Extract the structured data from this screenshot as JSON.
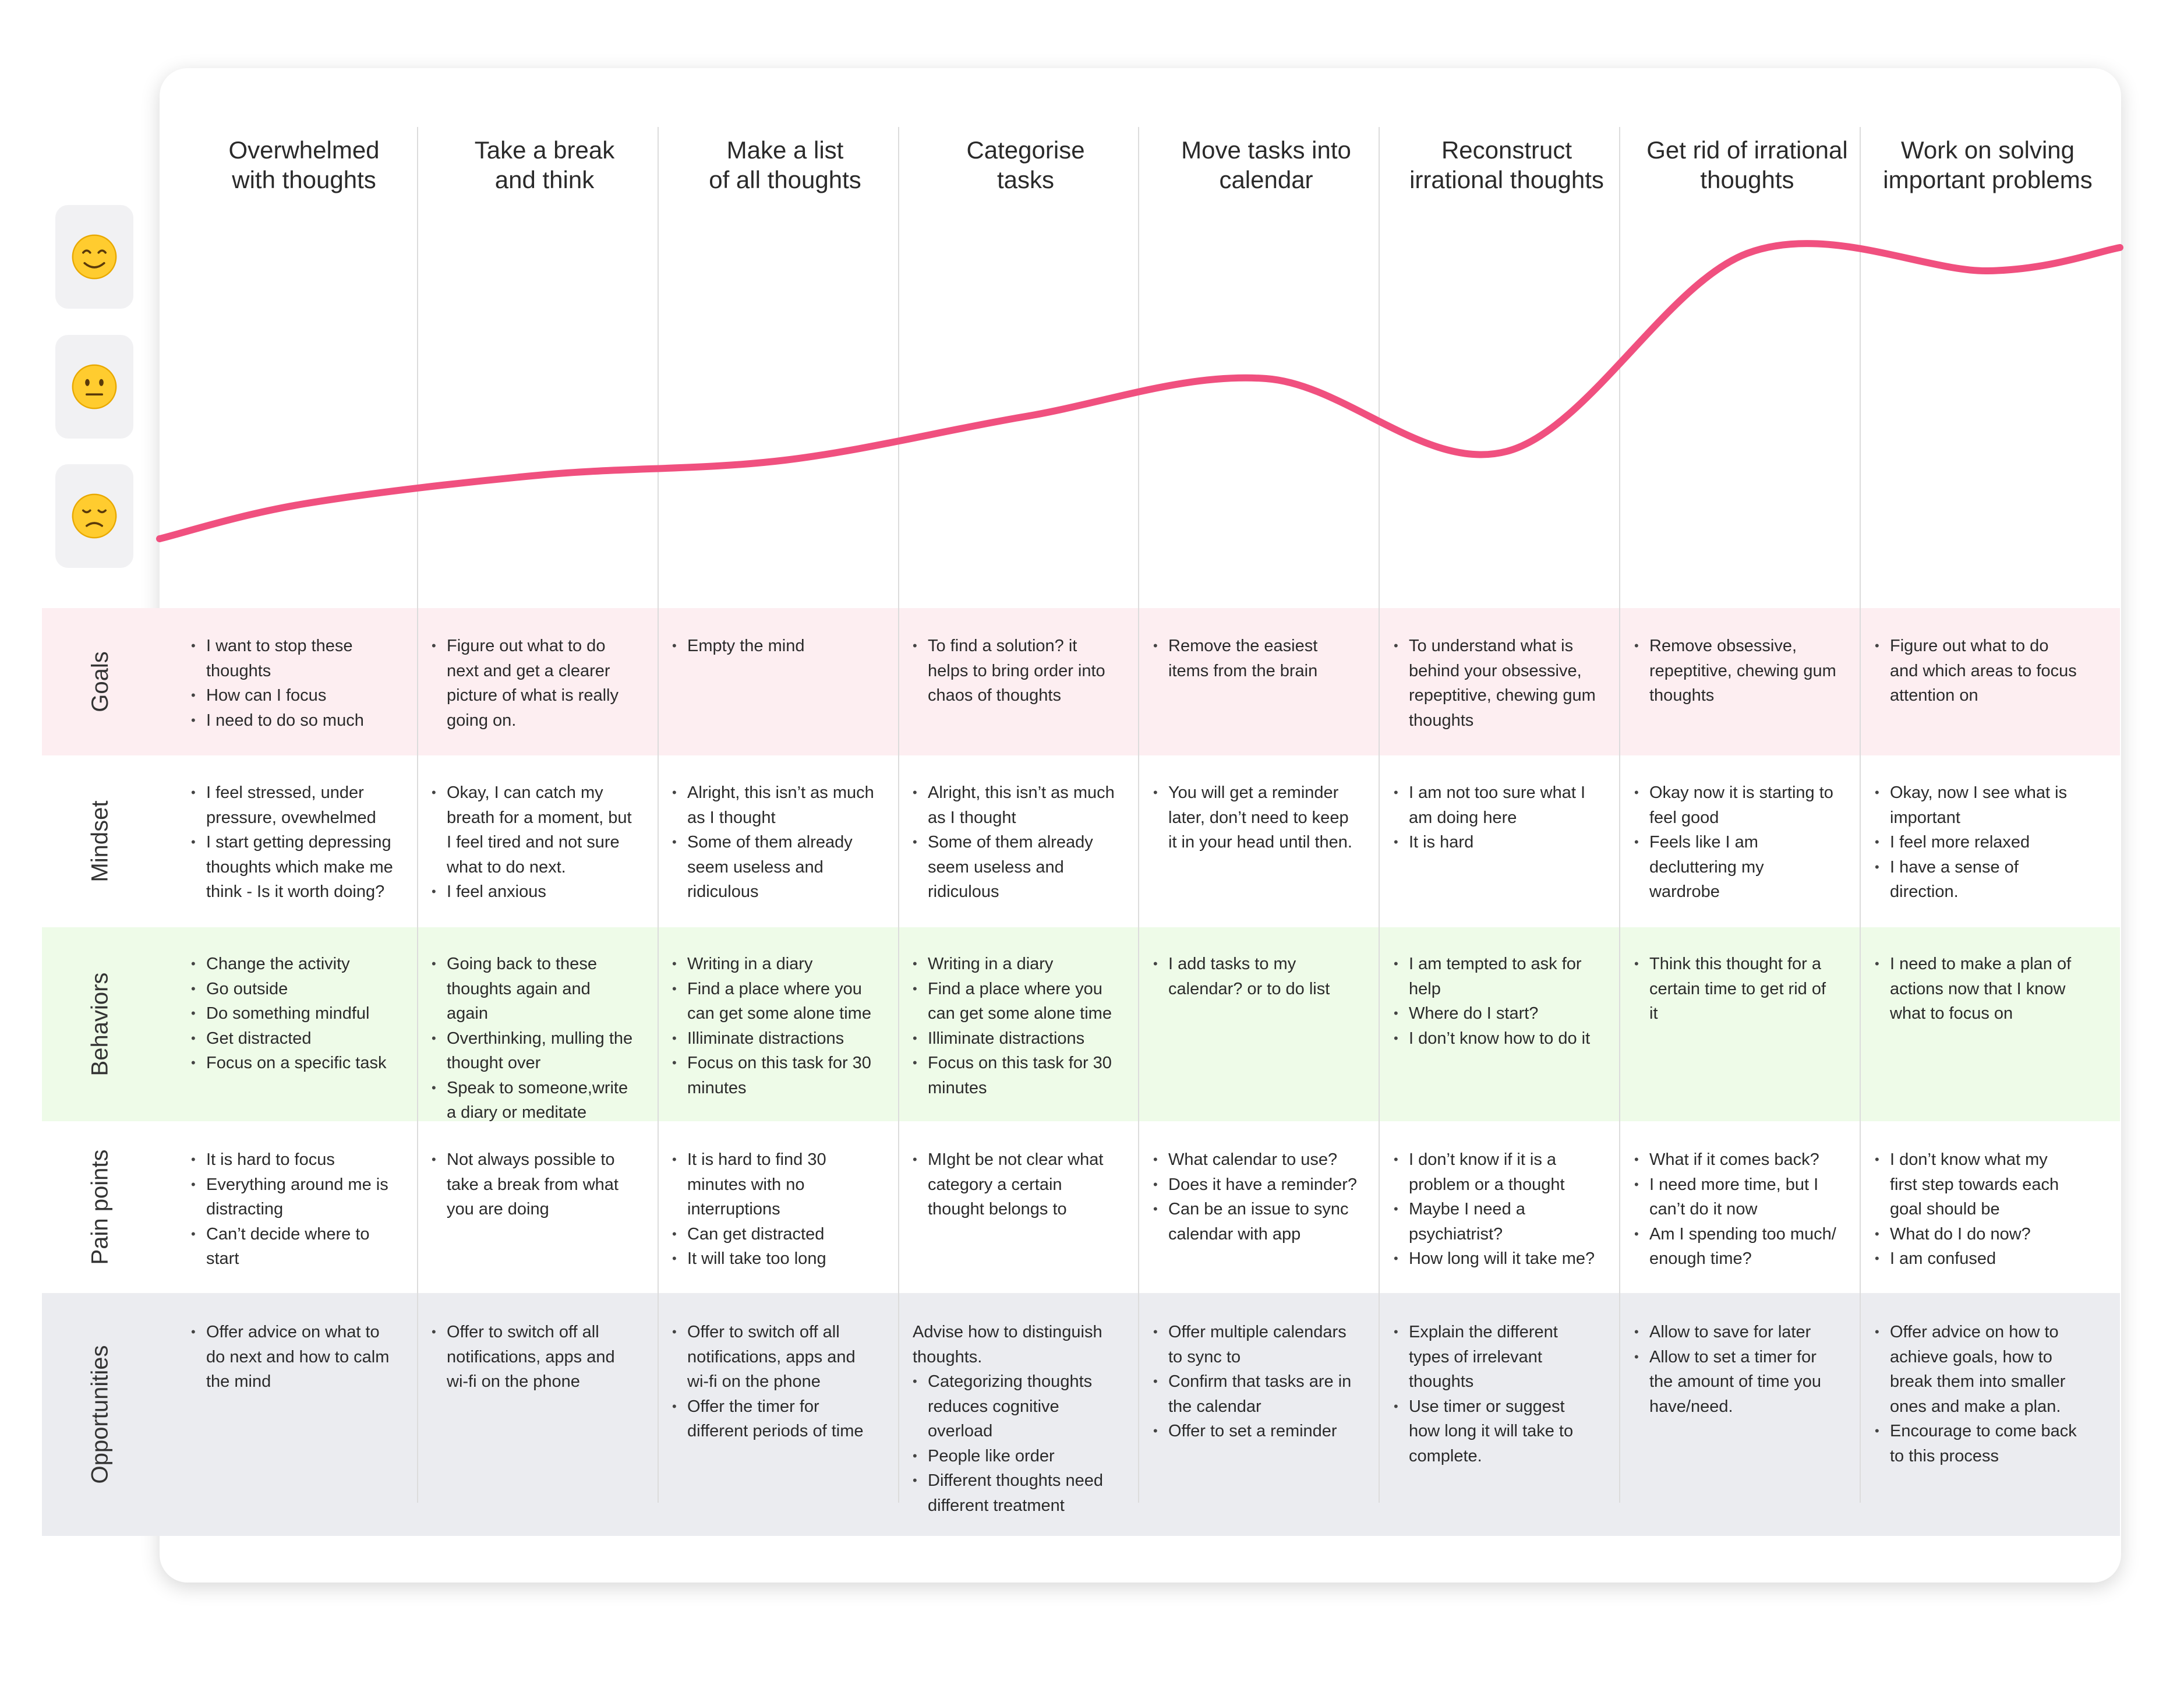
{
  "stages": [
    "Overwhelmed\nwith thoughts",
    "Take a break\nand think",
    "Make a list\nof all thoughts",
    "Categorise\ntasks",
    "Move tasks into\ncalendar",
    "Reconstruct\nirrational thoughts",
    "Get rid of irrational\nthoughts",
    "Work on solving\nimportant problems"
  ],
  "emotion_scale": [
    {
      "level": "happy",
      "icon": "smiling-face-icon"
    },
    {
      "level": "neutral",
      "icon": "neutral-face-icon"
    },
    {
      "level": "sad",
      "icon": "slightly-frowning-face-icon"
    }
  ],
  "emotion_curve": {
    "color": "#f0507f",
    "points": [
      {
        "stage": "start",
        "level": 0.0
      },
      {
        "stage": 1,
        "level": 0.12
      },
      {
        "stage": 2,
        "level": 0.22
      },
      {
        "stage": 3,
        "level": 0.27
      },
      {
        "stage": 4,
        "level": 0.42
      },
      {
        "stage": 5,
        "level": 0.55
      },
      {
        "stage": 6,
        "level": 0.3
      },
      {
        "stage": 7,
        "level": 0.98
      },
      {
        "stage": 8,
        "level": 0.92
      },
      {
        "stage": "end",
        "level": 1.0
      }
    ]
  },
  "rows": [
    {
      "label": "Goals",
      "bg": "#fdeef1",
      "cells": [
        {
          "items": [
            "I want to stop these thoughts",
            "How can I focus",
            "I need to do so much"
          ]
        },
        {
          "items": [
            "Figure out what to do next and get a clearer picture of what is really going on."
          ]
        },
        {
          "items": [
            "Empty the mind"
          ]
        },
        {
          "items": [
            "To find a solution? it helps to bring order into chaos of thoughts"
          ]
        },
        {
          "items": [
            "Remove the easiest items from the brain"
          ]
        },
        {
          "items": [
            "To understand what is behind your obsessive, repeptitive, chewing gum thoughts"
          ]
        },
        {
          "items": [
            "Remove obsessive, repeptitive, chewing gum thoughts"
          ]
        },
        {
          "items": [
            "Figure out what to do and which areas to focus attention on"
          ]
        }
      ]
    },
    {
      "label": "Mindset",
      "bg": "#ffffff",
      "cells": [
        {
          "items": [
            "I feel stressed, under pressure, ovewhelmed",
            "I start getting depressing thoughts which make me think - Is it worth doing?"
          ]
        },
        {
          "items": [
            "Okay, I can catch my breath for a moment, but I feel tired and not sure what to do next.",
            "I feel anxious"
          ]
        },
        {
          "items": [
            "Alright, this isn’t as much as I thought",
            "Some of them already seem useless and ridiculous"
          ]
        },
        {
          "items": [
            "Alright, this isn’t as much as I thought",
            "Some of them already seem useless and ridiculous"
          ]
        },
        {
          "items": [
            "You will get a reminder later, don’t need to keep it in your head until then."
          ]
        },
        {
          "items": [
            "I am not too sure what I am doing here",
            "It is hard"
          ]
        },
        {
          "items": [
            "Okay now it is starting to feel good",
            "Feels like I am decluttering my wardrobe"
          ]
        },
        {
          "items": [
            "Okay, now I see what is important",
            "I feel more relaxed",
            "I have a sense of direction."
          ]
        }
      ]
    },
    {
      "label": "Behaviors",
      "bg": "#eefbe8",
      "cells": [
        {
          "items": [
            "Change the activity",
            "Go outside",
            "Do something mindful",
            "Get distracted",
            "Focus on a specific task"
          ]
        },
        {
          "items": [
            "Going back to these thoughts again and again",
            "Overthinking, mulling the thought over",
            "Speak to someone,write a diary or meditate"
          ]
        },
        {
          "items": [
            "Writing in a diary",
            "Find a place where you can get some alone time",
            "Illiminate distractions",
            "Focus on this task for 30 minutes"
          ]
        },
        {
          "items": [
            "Writing in a diary",
            "Find a place where you can get some alone time",
            "Illiminate distractions",
            "Focus on this task for 30 minutes"
          ]
        },
        {
          "items": [
            "I add tasks to my calendar? or to do list"
          ]
        },
        {
          "items": [
            "I am tempted to ask for help",
            "Where do I start?",
            "I don’t know how to do it"
          ]
        },
        {
          "items": [
            "Think this thought for a certain time to get rid of it"
          ]
        },
        {
          "items": [
            "I need to make a plan of actions now that I know what to focus on"
          ]
        }
      ]
    },
    {
      "label": "Pain points",
      "bg": "#ffffff",
      "cells": [
        {
          "items": [
            "It is hard to focus",
            "Everything around me is distracting",
            "Can’t decide where to start"
          ]
        },
        {
          "items": [
            "Not always possible to take a break from what you are doing"
          ]
        },
        {
          "items": [
            "It is hard to find 30 minutes with no interruptions",
            "Can get distracted",
            "It will take too long"
          ]
        },
        {
          "items": [
            "MIght be not clear what category a certain thought belongs to"
          ]
        },
        {
          "items": [
            "What calendar to use?",
            "Does it have a reminder?",
            "Can be an issue to sync calendar with app"
          ]
        },
        {
          "items": [
            "I don’t know if it is a problem or a thought",
            "Maybe I need a psychiatrist?",
            "How long will it take me?"
          ]
        },
        {
          "items": [
            "What if it comes back?",
            "I need more time, but I can’t do it now",
            "Am I spending too much/ enough time?"
          ]
        },
        {
          "items": [
            "I don’t know what my first step towards each goal should be",
            "What do I do now?",
            "I am confused"
          ]
        }
      ]
    },
    {
      "label": "Opportunities",
      "bg": "#ebecf0",
      "cells": [
        {
          "items": [
            "Offer advice on what to do next and how to calm the mind"
          ]
        },
        {
          "items": [
            "Offer to switch off all notifications, apps and wi-fi on the phone"
          ]
        },
        {
          "items": [
            "Offer to switch off all notifications, apps and wi-fi on the phone",
            "Offer the timer for different periods of time"
          ]
        },
        {
          "intro": "Advise how to distinguish thoughts.",
          "items": [
            "Categorizing thoughts reduces cognitive overload",
            "People like order",
            "Different thoughts need different treatment"
          ]
        },
        {
          "items": [
            "Offer multiple calendars to sync to",
            "Confirm that tasks are in the calendar",
            "Offer to set a reminder"
          ]
        },
        {
          "items": [
            "Explain the different types of irrelevant thoughts",
            "Use timer or suggest how long it will take to complete."
          ]
        },
        {
          "items": [
            "Allow to save for later",
            "Allow to set a timer for the amount of time you have/need."
          ]
        },
        {
          "items": [
            "Offer advice on how to achieve goals, how to break them into smaller ones and make a plan.",
            "Encourage to come back to this process"
          ]
        }
      ]
    }
  ]
}
